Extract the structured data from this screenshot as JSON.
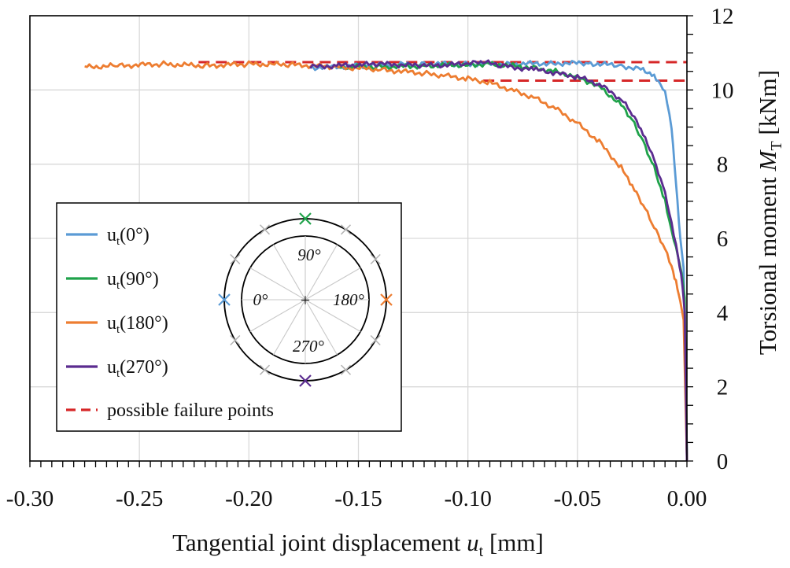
{
  "chart_data": {
    "type": "line",
    "xlabel": {
      "main": "Tangential joint displacement ",
      "var": "u",
      "sub": "t",
      "unit": " [mm]"
    },
    "ylabel": {
      "main": "Torsional moment ",
      "var": "M",
      "sub": "T",
      "unit": " [kNm]"
    },
    "xlim": [
      -0.3,
      0.0
    ],
    "ylim": [
      0,
      12
    ],
    "x_ticks": [
      "-0.30",
      "-0.25",
      "-0.20",
      "-0.15",
      "-0.10",
      "-0.05",
      "0.00"
    ],
    "y_ticks": [
      "0",
      "2",
      "4",
      "6",
      "8",
      "10",
      "12"
    ],
    "grid": true,
    "y_axis_side": "right",
    "legend": {
      "position": "lower-left",
      "entries": [
        {
          "prefix": "u",
          "sub": "t",
          "suffix": "(0°)",
          "color": "#5b9bd5"
        },
        {
          "prefix": "u",
          "sub": "t",
          "suffix": "(90°)",
          "color": "#1fa24a"
        },
        {
          "prefix": "u",
          "sub": "t",
          "suffix": "(180°)",
          "color": "#ed7d31"
        },
        {
          "prefix": "u",
          "sub": "t",
          "suffix": "(270°)",
          "color": "#5b2c8f"
        },
        {
          "text": "possible failure points",
          "color": "#d62728",
          "dashed": true
        }
      ]
    },
    "inset": {
      "labels": {
        "top": "90°",
        "left": "0°",
        "right": "180°",
        "bottom": "270°"
      },
      "marker_colors": {
        "top": "#1fa24a",
        "left": "#5b9bd5",
        "right": "#ed7d31",
        "bottom": "#5b2c8f",
        "other": "#b3b3b3"
      }
    },
    "series": [
      {
        "name": "ut(0°)",
        "color": "#5b9bd5",
        "x": [
          -0.172,
          -0.15,
          -0.12,
          -0.1,
          -0.08,
          -0.06,
          -0.045,
          -0.03,
          -0.02,
          -0.015,
          -0.01,
          -0.007,
          -0.005,
          -0.003,
          -0.0015,
          0.0
        ],
        "y": [
          10.6,
          10.65,
          10.7,
          10.7,
          10.7,
          10.72,
          10.72,
          10.65,
          10.55,
          10.4,
          10.0,
          9.0,
          7.5,
          6.0,
          5.2,
          0.0
        ]
      },
      {
        "name": "ut(90°)",
        "color": "#1fa24a",
        "x": [
          -0.16,
          -0.14,
          -0.12,
          -0.1,
          -0.09,
          -0.07,
          -0.06,
          -0.05,
          -0.04,
          -0.03,
          -0.025,
          -0.02,
          -0.015,
          -0.01,
          -0.007,
          -0.004,
          -0.002,
          -0.001,
          0.0
        ],
        "y": [
          10.62,
          10.62,
          10.65,
          10.68,
          10.7,
          10.6,
          10.5,
          10.35,
          10.1,
          9.6,
          9.2,
          8.6,
          7.9,
          7.0,
          6.2,
          5.5,
          4.9,
          4.4,
          0.0
        ]
      },
      {
        "name": "ut(180°)",
        "color": "#ed7d31",
        "x": [
          -0.275,
          -0.26,
          -0.24,
          -0.22,
          -0.2,
          -0.18,
          -0.16,
          -0.14,
          -0.12,
          -0.11,
          -0.1,
          -0.09,
          -0.08,
          -0.07,
          -0.06,
          -0.05,
          -0.04,
          -0.03,
          -0.025,
          -0.02,
          -0.015,
          -0.01,
          -0.007,
          -0.005,
          -0.003,
          -0.0015,
          0.0
        ],
        "y": [
          10.62,
          10.65,
          10.7,
          10.65,
          10.7,
          10.68,
          10.62,
          10.55,
          10.45,
          10.38,
          10.3,
          10.2,
          10.0,
          9.8,
          9.5,
          9.1,
          8.6,
          7.9,
          7.4,
          6.9,
          6.3,
          5.7,
          5.2,
          4.8,
          4.3,
          3.8,
          0.0
        ]
      },
      {
        "name": "ut(270°)",
        "color": "#5b2c8f",
        "x": [
          -0.172,
          -0.16,
          -0.14,
          -0.12,
          -0.1,
          -0.093,
          -0.085,
          -0.07,
          -0.06,
          -0.05,
          -0.04,
          -0.03,
          -0.025,
          -0.02,
          -0.015,
          -0.01,
          -0.007,
          -0.004,
          -0.002,
          -0.001,
          0.0
        ],
        "y": [
          10.62,
          10.65,
          10.7,
          10.65,
          10.7,
          10.75,
          10.65,
          10.55,
          10.45,
          10.35,
          10.15,
          9.75,
          9.35,
          8.8,
          8.1,
          7.2,
          6.4,
          5.5,
          4.7,
          4.0,
          0.0
        ]
      }
    ],
    "failure_lines": [
      {
        "y": 10.75,
        "x": [
          -0.223,
          0.0
        ],
        "color": "#d62728"
      },
      {
        "y": 10.25,
        "x": [
          -0.093,
          0.0
        ],
        "color": "#d62728"
      }
    ]
  }
}
